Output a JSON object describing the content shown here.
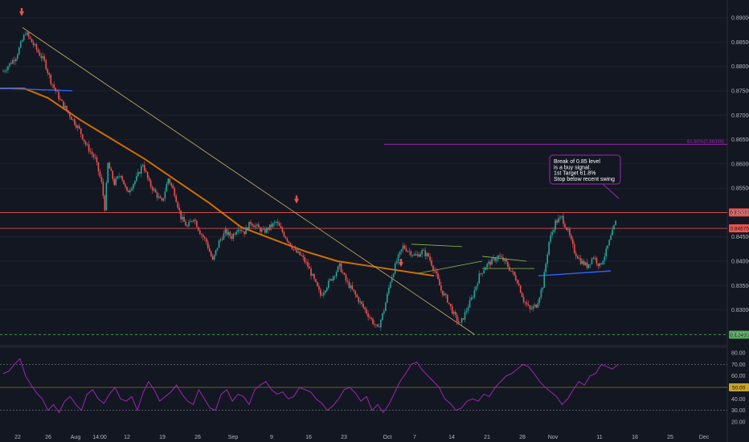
{
  "chart_data": [
    {
      "type": "candlestick",
      "title": "",
      "ylim": [
        0.823,
        0.892
      ],
      "y_ticks": [
        "0.89000",
        "0.88500",
        "0.88000",
        "0.87500",
        "0.87000",
        "0.86500",
        "0.86000",
        "0.85500",
        "0.85000",
        "0.84500",
        "0.84000",
        "0.83500",
        "0.83000",
        "0.82500"
      ],
      "x_ticks": [
        "22",
        "26",
        "Aug",
        "14:00",
        "12",
        "19",
        "26",
        "Sep",
        "9",
        "16",
        "23",
        "Oct",
        "7",
        "14",
        "21",
        "28",
        "Nov",
        "11",
        "18",
        "25",
        "Dec"
      ],
      "price_path": [
        [
          0,
          0.879
        ],
        [
          8,
          0.882
        ],
        [
          14,
          0.887
        ],
        [
          20,
          0.884
        ],
        [
          26,
          0.881
        ],
        [
          30,
          0.877
        ],
        [
          36,
          0.873
        ],
        [
          42,
          0.87
        ],
        [
          48,
          0.867
        ],
        [
          52,
          0.864
        ],
        [
          58,
          0.861
        ],
        [
          62,
          0.856
        ],
        [
          64,
          0.851
        ],
        [
          66,
          0.86
        ],
        [
          70,
          0.856
        ],
        [
          74,
          0.858
        ],
        [
          78,
          0.854
        ],
        [
          84,
          0.857
        ],
        [
          88,
          0.86
        ],
        [
          92,
          0.856
        ],
        [
          96,
          0.854
        ],
        [
          100,
          0.852
        ],
        [
          104,
          0.857
        ],
        [
          108,
          0.854
        ],
        [
          112,
          0.849
        ],
        [
          116,
          0.847
        ],
        [
          120,
          0.849
        ],
        [
          124,
          0.846
        ],
        [
          128,
          0.844
        ],
        [
          132,
          0.84
        ],
        [
          136,
          0.844
        ],
        [
          140,
          0.846
        ],
        [
          144,
          0.845
        ],
        [
          148,
          0.847
        ],
        [
          152,
          0.846
        ],
        [
          156,
          0.848
        ],
        [
          160,
          0.847
        ],
        [
          164,
          0.846
        ],
        [
          168,
          0.847
        ],
        [
          172,
          0.848
        ],
        [
          176,
          0.846
        ],
        [
          180,
          0.844
        ],
        [
          184,
          0.842
        ],
        [
          188,
          0.841
        ],
        [
          192,
          0.839
        ],
        [
          196,
          0.836
        ],
        [
          200,
          0.833
        ],
        [
          204,
          0.835
        ],
        [
          208,
          0.837
        ],
        [
          212,
          0.839
        ],
        [
          216,
          0.836
        ],
        [
          220,
          0.834
        ],
        [
          224,
          0.832
        ],
        [
          228,
          0.83
        ],
        [
          232,
          0.828
        ],
        [
          236,
          0.826
        ],
        [
          240,
          0.83
        ],
        [
          244,
          0.836
        ],
        [
          248,
          0.84
        ],
        [
          252,
          0.843
        ],
        [
          256,
          0.842
        ],
        [
          260,
          0.841
        ],
        [
          264,
          0.842
        ],
        [
          268,
          0.841
        ],
        [
          272,
          0.838
        ],
        [
          276,
          0.834
        ],
        [
          280,
          0.832
        ],
        [
          284,
          0.829
        ],
        [
          288,
          0.827
        ],
        [
          292,
          0.83
        ],
        [
          296,
          0.833
        ],
        [
          300,
          0.837
        ],
        [
          304,
          0.839
        ],
        [
          308,
          0.84
        ],
        [
          312,
          0.841
        ],
        [
          316,
          0.84
        ],
        [
          320,
          0.838
        ],
        [
          324,
          0.836
        ],
        [
          328,
          0.832
        ],
        [
          332,
          0.83
        ],
        [
          336,
          0.831
        ],
        [
          340,
          0.835
        ],
        [
          344,
          0.844
        ],
        [
          348,
          0.848
        ],
        [
          352,
          0.849
        ],
        [
          356,
          0.846
        ],
        [
          360,
          0.842
        ],
        [
          364,
          0.84
        ],
        [
          368,
          0.839
        ],
        [
          372,
          0.841
        ],
        [
          376,
          0.839
        ],
        [
          380,
          0.842
        ],
        [
          384,
          0.846
        ],
        [
          386,
          0.848
        ]
      ],
      "horizontal_levels": [
        {
          "value": 0.85,
          "color": "#ef5350",
          "tag": "0.85000"
        },
        {
          "value": 0.84675,
          "color": "#ef5350",
          "tag": "0.84675"
        },
        {
          "value": 0.8249,
          "color": "#4caf50",
          "tag": "0.82490"
        }
      ],
      "fib_level": {
        "value": 0.864,
        "label": "61.80%(0.86399)",
        "color": "#9c27b0"
      },
      "annotation": {
        "lines": [
          "Break of 0.85 level",
          "is a buy signal.",
          "1st Target 61.8%",
          "Stop below recent swing"
        ],
        "border_color": "#9c27b0",
        "bg_color": "#131722"
      },
      "overlays": {
        "moving_average_color": "#f57c00",
        "trendline_color": "#c8b560",
        "support_line_color": "#2962ff"
      }
    },
    {
      "type": "line",
      "title": "",
      "ylim": [
        15,
        85
      ],
      "y_ticks": [
        "80.00",
        "70.00",
        "60.00",
        "50.00",
        "40.00",
        "30.00",
        "20.00"
      ],
      "levels": [
        70,
        50,
        30
      ],
      "current_tag": "50.00",
      "series": [
        {
          "color": "#9c27b0",
          "values": [
            62,
            64,
            70,
            75,
            60,
            52,
            45,
            40,
            30,
            35,
            28,
            38,
            42,
            35,
            30,
            44,
            48,
            40,
            36,
            44,
            50,
            40,
            38,
            42,
            30,
            45,
            55,
            48,
            38,
            42,
            46,
            52,
            44,
            38,
            35,
            48,
            40,
            32,
            30,
            44,
            48,
            38,
            44,
            42,
            35,
            48,
            52,
            55,
            48,
            44,
            46,
            40,
            42,
            50,
            48,
            46,
            40,
            36,
            30,
            34,
            40,
            48,
            50,
            45,
            38,
            42,
            30,
            35,
            28,
            35,
            45,
            55,
            62,
            70,
            72,
            65,
            60,
            55,
            50,
            40,
            36,
            30,
            32,
            38,
            40,
            38,
            44,
            42,
            50,
            55,
            60,
            62,
            66,
            70,
            68,
            62,
            55,
            50,
            46,
            42,
            35,
            40,
            48,
            55,
            52,
            60,
            62,
            70,
            68,
            66,
            70
          ]
        }
      ]
    }
  ]
}
